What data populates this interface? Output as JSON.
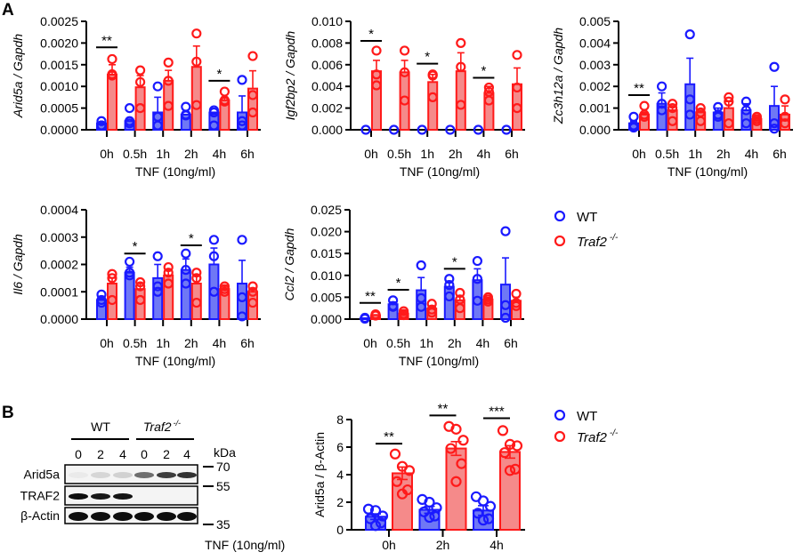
{
  "panel_labels": {
    "a": "A",
    "b": "B"
  },
  "colors": {
    "wt": "#1a1aff",
    "traf2": "#ff1a1a",
    "wt_fill": "#6f78f5",
    "traf2_fill": "#f58a8a"
  },
  "legend": {
    "wt": "WT",
    "traf2": "Traf2",
    "traf2_sup": "-/-"
  },
  "chart_data": [
    {
      "id": "arid5a",
      "type": "bar",
      "ylabel": "Arid5a / Gapdh",
      "xlabel": "TNF (10ng/ml)",
      "categories": [
        "0h",
        "0.5h",
        "1h",
        "2h",
        "4h",
        "6h"
      ],
      "ylim": [
        0,
        0.0025
      ],
      "yticks": [
        "0.0000",
        "0.0005",
        "0.0010",
        "0.0015",
        "0.0020",
        "0.0025"
      ],
      "series": [
        {
          "name": "WT",
          "key": "wt",
          "means": [
            0.00015,
            0.0002,
            0.0004,
            0.00035,
            0.0004,
            0.0004
          ],
          "error_top": [
            0.00015,
            0.0002,
            0.00075,
            0.00035,
            0.0004,
            0.00078
          ],
          "points": [
            [
              0.0002,
              0.0001,
              0.0001
            ],
            [
              0.0005,
              0.0002,
              0.00015
            ],
            [
              0.001,
              0.0003,
              0.0001
            ],
            [
              0.00053,
              0.00035,
              0.00033
            ],
            [
              0.00045,
              0.0004,
              0.0001
            ],
            [
              0.00115,
              0.0002,
              0.0001
            ]
          ]
        },
        {
          "name": "Traf2 -/-",
          "key": "traf2",
          "means": [
            0.00127,
            0.00098,
            0.00113,
            0.00145,
            0.00068,
            0.00095
          ],
          "error_top": [
            0.0015,
            0.00125,
            0.00137,
            0.00193,
            0.00075,
            0.00136
          ],
          "points": [
            [
              0.00163,
              0.00128,
              0.00125
            ],
            [
              0.00137,
              0.0011,
              0.0005
            ],
            [
              0.00155,
              0.00113,
              0.00055
            ],
            [
              0.00222,
              0.00157,
              0.00057
            ],
            [
              0.00088,
              0.00068,
              0.00065
            ],
            [
              0.0017,
              0.0008,
              0.0004
            ]
          ]
        }
      ],
      "significance": [
        {
          "category": "0h",
          "label": "**",
          "y": 0.0019
        },
        {
          "category": "4h",
          "label": "*",
          "y": 0.00113
        }
      ]
    },
    {
      "id": "igf2bp2",
      "type": "bar",
      "ylabel": "Igf2bp2 / Gapdh",
      "xlabel": "TNF (10ng/ml)",
      "categories": [
        "0h",
        "0.5h",
        "1h",
        "2h",
        "4h",
        "6h"
      ],
      "ylim": [
        0,
        0.01
      ],
      "yticks": [
        "0.000",
        "0.002",
        "0.004",
        "0.006",
        "0.008",
        "0.010"
      ],
      "series": [
        {
          "name": "WT",
          "key": "wt",
          "means": [
            0,
            0,
            0,
            0,
            0,
            0
          ],
          "error_top": [
            0,
            0,
            0,
            0,
            0,
            0
          ],
          "points": [
            [
              0
            ],
            [
              0
            ],
            [
              0
            ],
            [
              0
            ],
            [
              0
            ],
            [
              0
            ]
          ]
        },
        {
          "name": "Traf2 -/-",
          "key": "traf2",
          "means": [
            0.0054,
            0.0053,
            0.0044,
            0.0054,
            0.0034,
            0.0042
          ],
          "error_top": [
            0.0064,
            0.0064,
            0.0051,
            0.0071,
            0.004,
            0.0057
          ],
          "points": [
            [
              0.0073,
              0.0051,
              0.0041
            ],
            [
              0.0073,
              0.0053,
              0.0027
            ],
            [
              0.0051,
              0.005,
              0.003
            ],
            [
              0.008,
              0.0058,
              0.0023
            ],
            [
              0.0039,
              0.0035,
              0.0027
            ],
            [
              0.0069,
              0.0039,
              0.002
            ]
          ]
        }
      ],
      "significance": [
        {
          "category": "0h",
          "label": "*",
          "y": 0.0082
        },
        {
          "category": "1h",
          "label": "*",
          "y": 0.0061
        },
        {
          "category": "4h",
          "label": "*",
          "y": 0.0048
        }
      ]
    },
    {
      "id": "zc3h12a",
      "type": "bar",
      "ylabel": "Zc3h12a / Gapdh",
      "xlabel": "TNF (10ng/ml)",
      "categories": [
        "0h",
        "0.5h",
        "1h",
        "2h",
        "4h",
        "6h"
      ],
      "ylim": [
        0,
        0.005
      ],
      "yticks": [
        "0.000",
        "0.001",
        "0.002",
        "0.003",
        "0.004",
        "0.005"
      ],
      "series": [
        {
          "name": "WT",
          "key": "wt",
          "means": [
            0.0003,
            0.0012,
            0.0021,
            0.0008,
            0.0009,
            0.0011
          ],
          "error_top": [
            0.0004,
            0.0017,
            0.0033,
            0.001,
            0.0012,
            0.002
          ],
          "points": [
            [
              0.0006,
              0.0002,
              0.0001
            ],
            [
              0.002,
              0.0012,
              0.0009
            ],
            [
              0.0044,
              0.0014,
              0.0007
            ],
            [
              0.00105,
              0.0007,
              0.0006
            ],
            [
              0.0013,
              0.0009,
              0.0003
            ],
            [
              0.0029,
              0.0003,
              5e-05
            ]
          ]
        },
        {
          "name": "Traf2 -/-",
          "key": "traf2",
          "means": [
            0.0007,
            0.0009,
            0.0008,
            0.001,
            0.0005,
            0.0007
          ],
          "error_top": [
            0.0008,
            0.0011,
            0.0009,
            0.0013,
            0.0006,
            0.0011
          ],
          "points": [
            [
              0.0011,
              0.0007,
              0.0006
            ],
            [
              0.0012,
              0.001,
              0.0004
            ],
            [
              0.001,
              0.0008,
              0.0004
            ],
            [
              0.0015,
              0.0013,
              0.0003
            ],
            [
              0.0006,
              0.0005,
              0.0004
            ],
            [
              0.0014,
              0.0006,
              0.0003
            ]
          ]
        }
      ],
      "significance": [
        {
          "category": "0h",
          "label": "**",
          "y": 0.0016
        }
      ]
    },
    {
      "id": "il6",
      "type": "bar",
      "ylabel": "Il6 / Gapdh",
      "xlabel": "TNF (10ng/ml)",
      "categories": [
        "0h",
        "0.5h",
        "1h",
        "2h",
        "4h",
        "6h"
      ],
      "ylim": [
        0,
        0.0004
      ],
      "yticks": [
        "0.0000",
        "0.0001",
        "0.0002",
        "0.0003",
        "0.0004"
      ],
      "series": [
        {
          "name": "WT",
          "key": "wt",
          "means": [
            7e-05,
            0.00017,
            0.00015,
            0.00018,
            0.0002,
            0.00013
          ],
          "error_top": [
            8e-05,
            0.00019,
            0.0002,
            0.00022,
            0.00026,
            0.000215
          ],
          "points": [
            [
              9e-05,
              7e-05,
              6e-05
            ],
            [
              0.00021,
              0.00017,
              0.00016
            ],
            [
              0.00023,
              0.00012,
              0.0001
            ],
            [
              0.00024,
              0.00018,
              0.00013
            ],
            [
              0.00029,
              0.00023,
              0.0001
            ],
            [
              0.00029,
              8e-05,
              1e-05
            ]
          ]
        },
        {
          "name": "Traf2 -/-",
          "key": "traf2",
          "means": [
            0.00013,
            0.00011,
            0.00016,
            0.00013,
            0.00011,
            0.0001
          ],
          "error_top": [
            0.00015,
            0.00013,
            0.00018,
            0.00016,
            0.00012,
            0.00011
          ],
          "points": [
            [
              0.000165,
              0.00015,
              7e-05
            ],
            [
              0.000135,
              0.00012,
              7e-05
            ],
            [
              0.00019,
              0.00017,
              0.00013
            ],
            [
              0.00017,
              0.00015,
              6e-05
            ],
            [
              0.00012,
              0.00011,
              0.0001
            ],
            [
              0.00012,
              0.0001,
              6e-05
            ]
          ]
        }
      ],
      "significance": [
        {
          "category": "0.5h",
          "label": "*",
          "y": 0.00024
        },
        {
          "category": "2h",
          "label": "*",
          "y": 0.00027
        }
      ]
    },
    {
      "id": "ccl2",
      "type": "bar",
      "ylabel": "Ccl2 / Gapdh",
      "xlabel": "TNF (10ng/ml)",
      "categories": [
        "0h",
        "0.5h",
        "1h",
        "2h",
        "4h",
        "6h"
      ],
      "ylim": [
        0,
        0.025
      ],
      "yticks": [
        "0.000",
        "0.005",
        "0.010",
        "0.015",
        "0.020",
        "0.025"
      ],
      "series": [
        {
          "name": "WT",
          "key": "wt",
          "means": [
            0.0002,
            0.0034,
            0.0066,
            0.0074,
            0.0089,
            0.0079
          ],
          "error_top": [
            0.0002,
            0.0039,
            0.0095,
            0.0087,
            0.0115,
            0.014
          ],
          "points": [
            [
              0.0003,
              0.0002,
              0.0001
            ],
            [
              0.0043,
              0.003,
              0.0028
            ],
            [
              0.0123,
              0.0048,
              0.0028
            ],
            [
              0.0092,
              0.0078,
              0.0052
            ],
            [
              0.0133,
              0.0092,
              0.0042
            ],
            [
              0.0201,
              0.0032,
              0.0003
            ]
          ]
        },
        {
          "name": "Traf2 -/-",
          "key": "traf2",
          "means": [
            0.0009,
            0.0013,
            0.0024,
            0.0043,
            0.0045,
            0.0042
          ],
          "error_top": [
            0.001,
            0.0016,
            0.003,
            0.0053,
            0.0048,
            0.005
          ],
          "points": [
            [
              0.0011,
              0.0009,
              0.0008
            ],
            [
              0.0018,
              0.0012,
              0.0009
            ],
            [
              0.0035,
              0.0022,
              0.0015
            ],
            [
              0.006,
              0.0045,
              0.0025
            ],
            [
              0.005,
              0.0045,
              0.004
            ],
            [
              0.0058,
              0.0037,
              0.003
            ]
          ]
        }
      ],
      "significance": [
        {
          "category": "0h",
          "label": "**",
          "y": 0.0037
        },
        {
          "category": "0.5h",
          "label": "*",
          "y": 0.0067
        },
        {
          "category": "2h",
          "label": "*",
          "y": 0.0115
        }
      ]
    },
    {
      "id": "arid5a_protein",
      "type": "bar",
      "ylabel": "Arid5a / β-Actin",
      "xlabel": "TNF (10ng/ml)",
      "categories": [
        "0h",
        "2h",
        "4h"
      ],
      "ylim": [
        0,
        8
      ],
      "yticks": [
        "0",
        "2",
        "4",
        "6",
        "8"
      ],
      "series": [
        {
          "name": "WT",
          "key": "wt",
          "means": [
            0.95,
            1.45,
            1.4
          ],
          "error_top": [
            1.15,
            1.7,
            1.75
          ],
          "error_bottom": [
            0.75,
            1.2,
            1.05
          ],
          "points": [
            [
              1.5,
              1.4,
              1.0,
              0.8,
              0.5,
              0.3
            ],
            [
              2.2,
              2.0,
              1.6,
              1.3,
              1.0,
              0.9
            ],
            [
              2.4,
              2.1,
              1.7,
              1.2,
              0.8,
              0.7
            ]
          ]
        },
        {
          "name": "Traf2 -/-",
          "key": "traf2",
          "means": [
            4.1,
            5.9,
            5.65
          ],
          "error_top": [
            4.55,
            6.4,
            6.1
          ],
          "error_bottom": [
            3.65,
            5.4,
            5.2
          ],
          "points": [
            [
              5.5,
              4.6,
              4.3,
              3.5,
              2.9,
              2.6
            ],
            [
              7.5,
              7.3,
              6.5,
              5.9,
              4.8,
              3.5
            ],
            [
              7.2,
              6.2,
              6.1,
              5.6,
              4.4,
              4.3
            ]
          ]
        }
      ],
      "significance": [
        {
          "category": "0h",
          "label": "**",
          "y": 6.25
        },
        {
          "category": "2h",
          "label": "**",
          "y": 8.3
        },
        {
          "category": "4h",
          "label": "***",
          "y": 8.1
        }
      ]
    }
  ],
  "western_blot": {
    "groups": [
      {
        "label": "WT"
      },
      {
        "label": "Traf2",
        "sup": "-/-"
      }
    ],
    "lanes": [
      "0",
      "2",
      "4",
      "0",
      "2",
      "4"
    ],
    "kda_label": "kDa",
    "rows": [
      {
        "label": "Arid5a",
        "intensity": [
          0.04,
          0.12,
          0.14,
          0.55,
          0.75,
          0.8
        ]
      },
      {
        "label": "TRAF2",
        "intensity": [
          0.95,
          0.9,
          0.92,
          0,
          0,
          0
        ]
      },
      {
        "label": "β-Actin",
        "intensity": [
          0.95,
          0.95,
          0.95,
          0.95,
          0.95,
          0.95
        ]
      }
    ],
    "markers": [
      "70",
      "55",
      "35"
    ]
  }
}
